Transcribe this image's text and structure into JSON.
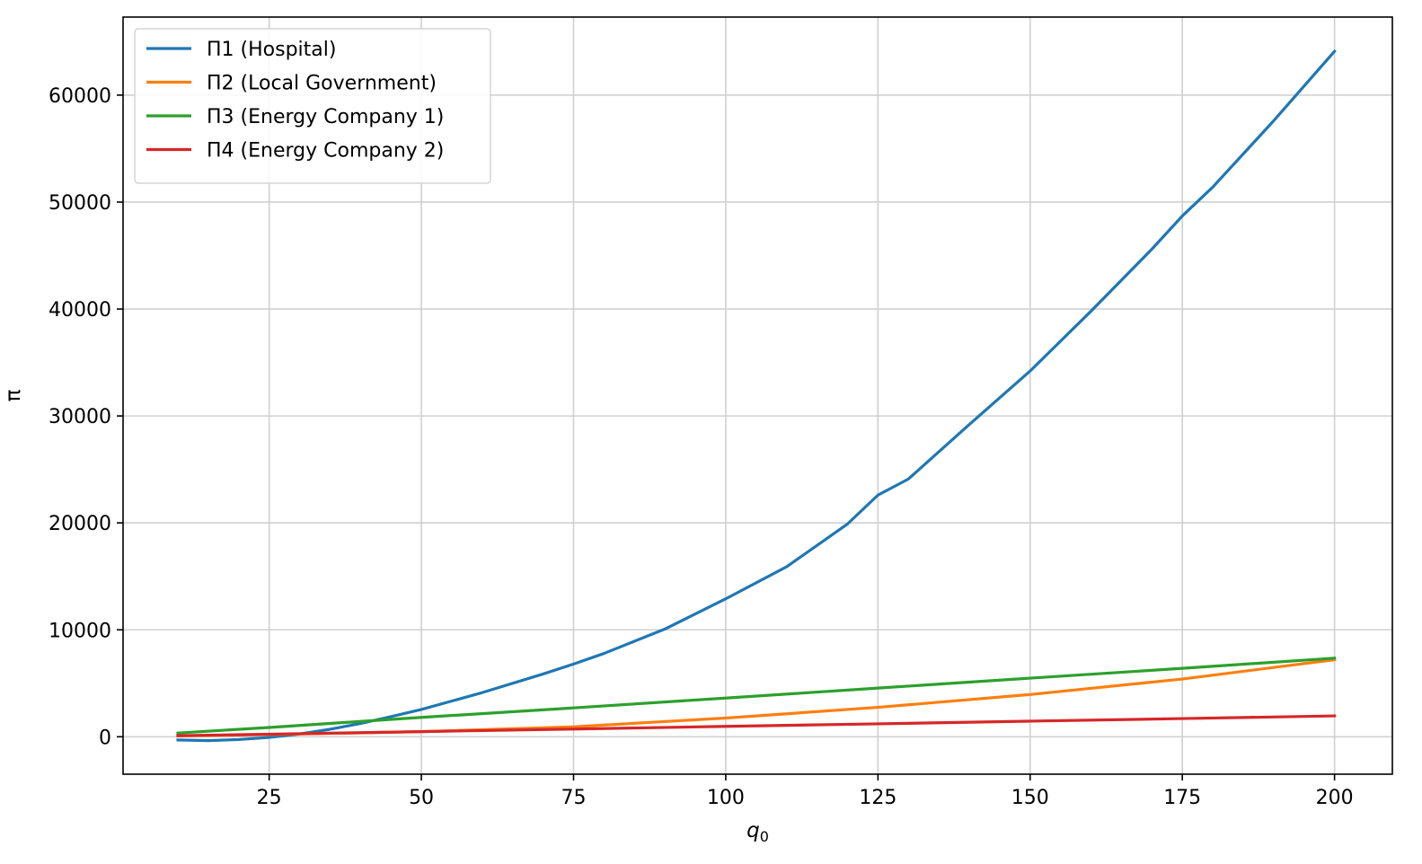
{
  "chart_data": {
    "type": "line",
    "title": "",
    "xlabel_base": "q",
    "xlabel_sub": "0",
    "ylabel": "π",
    "xlim": [
      1.0,
      209.5
    ],
    "ylim": [
      -3500,
      67300
    ],
    "xticks": [
      25,
      50,
      75,
      100,
      125,
      150,
      175,
      200
    ],
    "yticks": [
      0,
      10000,
      20000,
      30000,
      40000,
      50000,
      60000
    ],
    "grid": true,
    "legend_position": "top-left",
    "series": [
      {
        "name": "Π1 (Hospital)",
        "color": "#1f77b4",
        "x": [
          10,
          15,
          20,
          25,
          30,
          35,
          40,
          45,
          50,
          60,
          70,
          75,
          80,
          90,
          100,
          110,
          120,
          125,
          130,
          140,
          150,
          160,
          170,
          175,
          180,
          190,
          200
        ],
        "y": [
          -300,
          -360,
          -260,
          -60,
          260,
          700,
          1240,
          1880,
          2550,
          4130,
          5870,
          6800,
          7790,
          10070,
          12900,
          15900,
          19900,
          22600,
          24100,
          29200,
          34200,
          39800,
          45600,
          48700,
          51400,
          57600,
          64100
        ]
      },
      {
        "name": "Π2 (Local Government)",
        "color": "#ff7f0e",
        "x": [
          10,
          25,
          50,
          75,
          100,
          125,
          150,
          175,
          200
        ],
        "y": [
          80,
          200,
          480,
          930,
          1750,
          2750,
          3950,
          5400,
          7200
        ]
      },
      {
        "name": "Π3 (Energy Company 1)",
        "color": "#2ca02c",
        "x": [
          10,
          25,
          50,
          75,
          100,
          125,
          150,
          175,
          200
        ],
        "y": [
          350,
          870,
          1810,
          2700,
          3620,
          4550,
          5480,
          6400,
          7350
        ]
      },
      {
        "name": "Π4 (Energy Company 2)",
        "color": "#d62728",
        "x": [
          10,
          25,
          50,
          75,
          100,
          125,
          150,
          175,
          200
        ],
        "y": [
          100,
          240,
          480,
          720,
          970,
          1210,
          1460,
          1700,
          1950
        ]
      }
    ]
  }
}
